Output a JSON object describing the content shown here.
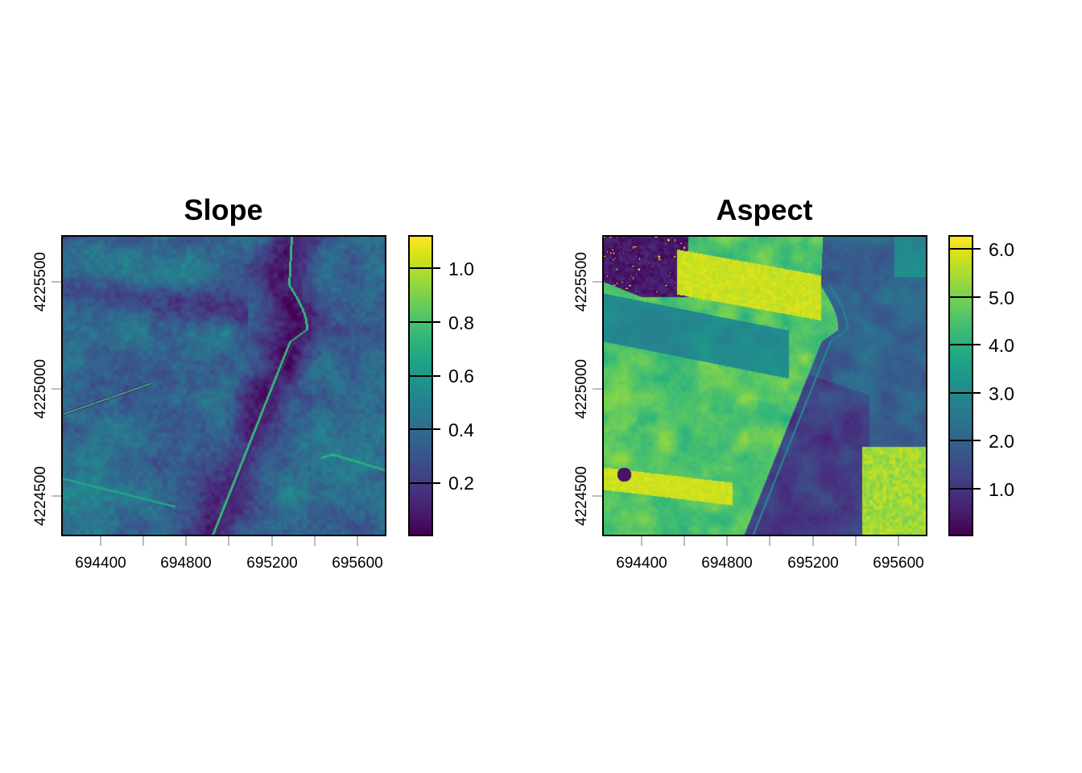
{
  "chart_data": [
    {
      "type": "heatmap",
      "title": "Slope",
      "xlabel": "",
      "ylabel": "",
      "x_ticks": [
        694400,
        694800,
        695200,
        695600
      ],
      "x_minor_ticks": [
        694400,
        694600,
        694800,
        695000,
        695200,
        695400,
        695600
      ],
      "y_ticks": [
        4224500,
        4225000,
        4225500
      ],
      "xlim": [
        694220,
        695740
      ],
      "ylim": [
        4224310,
        4225710
      ],
      "colorbar": {
        "colormap": "viridis",
        "range": [
          0.005,
          1.12
        ],
        "ticks": [
          0.2,
          0.4,
          0.6,
          0.8,
          1.0
        ],
        "tick_labels": [
          "0.2",
          "0.4",
          "0.6",
          "0.8",
          "1.0"
        ]
      },
      "grid": false,
      "legend_position": "right (colorbar)"
    },
    {
      "type": "heatmap",
      "title": "Aspect",
      "xlabel": "",
      "ylabel": "",
      "x_ticks": [
        694400,
        694800,
        695200,
        695600
      ],
      "x_minor_ticks": [
        694400,
        694600,
        694800,
        695000,
        695200,
        695400,
        695600
      ],
      "y_ticks": [
        4224500,
        4225000,
        4225500
      ],
      "xlim": [
        694220,
        695740
      ],
      "ylim": [
        4224310,
        4225710
      ],
      "colorbar": {
        "colormap": "viridis",
        "range": [
          0.03,
          6.28
        ],
        "ticks": [
          1.0,
          2.0,
          3.0,
          4.0,
          5.0,
          6.0
        ],
        "tick_labels": [
          "1.0",
          "2.0",
          "3.0",
          "4.0",
          "5.0",
          "6.0"
        ]
      },
      "grid": false,
      "legend_position": "right (colorbar)"
    }
  ],
  "panels": {
    "slope": {
      "title": "Slope",
      "x_labels": [
        "694400",
        "694800",
        "695200",
        "695600"
      ],
      "y_labels": [
        "4225500",
        "4225000",
        "4224500"
      ],
      "cbar_labels": [
        "1.0",
        "0.8",
        "0.6",
        "0.4",
        "0.2"
      ]
    },
    "aspect": {
      "title": "Aspect",
      "x_labels": [
        "694400",
        "694800",
        "695200",
        "695600"
      ],
      "y_labels": [
        "4225500",
        "4225000",
        "4224500"
      ],
      "cbar_labels": [
        "6.0",
        "5.0",
        "4.0",
        "3.0",
        "2.0",
        "1.0"
      ]
    }
  },
  "colors": {
    "viridis_low": "#440154",
    "viridis_mid": "#21918c",
    "viridis_high": "#fde725",
    "tick_gray": "#bdbdbd"
  }
}
